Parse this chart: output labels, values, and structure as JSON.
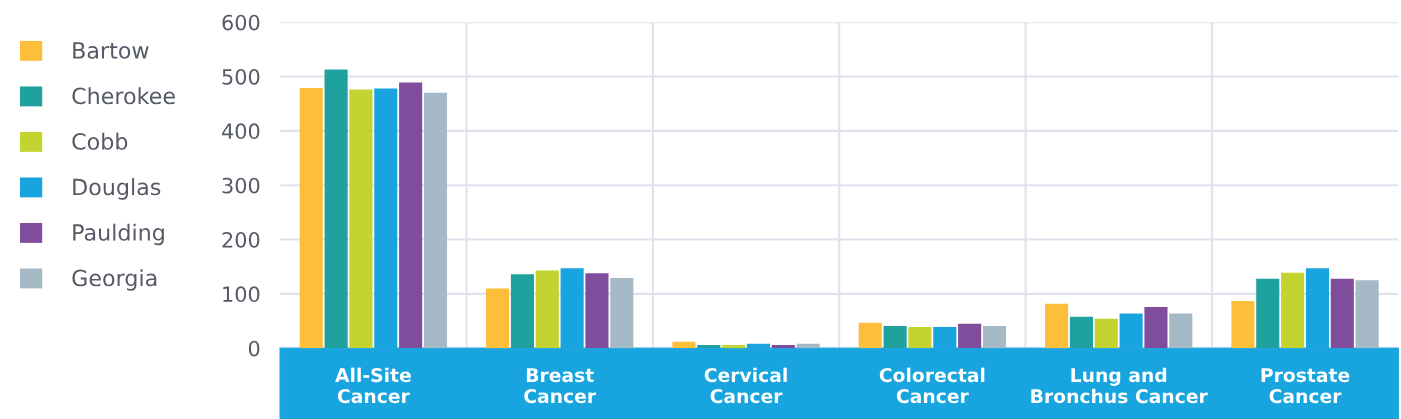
{
  "chart_data": {
    "type": "bar",
    "categories": [
      "All-Site\nCancer",
      "Breast\nCancer",
      "Cervical\nCancer",
      "Colorectal\nCancer",
      "Lung and\nBronchus Cancer",
      "Prostate\nCancer"
    ],
    "series": [
      {
        "name": "Bartow",
        "color": "#fdbe3b",
        "values": [
          479,
          110,
          12,
          47,
          82,
          87
        ]
      },
      {
        "name": "Cherokee",
        "color": "#1fa19d",
        "values": [
          513,
          136,
          6,
          41,
          58,
          128
        ]
      },
      {
        "name": "Cobb",
        "color": "#c3d431",
        "values": [
          476,
          143,
          6,
          39,
          54,
          139
        ]
      },
      {
        "name": "Douglas",
        "color": "#18a5df",
        "values": [
          478,
          147,
          8,
          39,
          64,
          147
        ]
      },
      {
        "name": "Paulding",
        "color": "#804c9c",
        "values": [
          489,
          138,
          6,
          45,
          76,
          128
        ]
      },
      {
        "name": "Georgia",
        "color": "#a5b9c7",
        "values": [
          470,
          129,
          8,
          41,
          64,
          125
        ]
      }
    ],
    "ylim": [
      0,
      600
    ],
    "yticks": [
      0,
      100,
      200,
      300,
      400,
      500,
      600
    ],
    "grid": "y",
    "legend": "left"
  }
}
